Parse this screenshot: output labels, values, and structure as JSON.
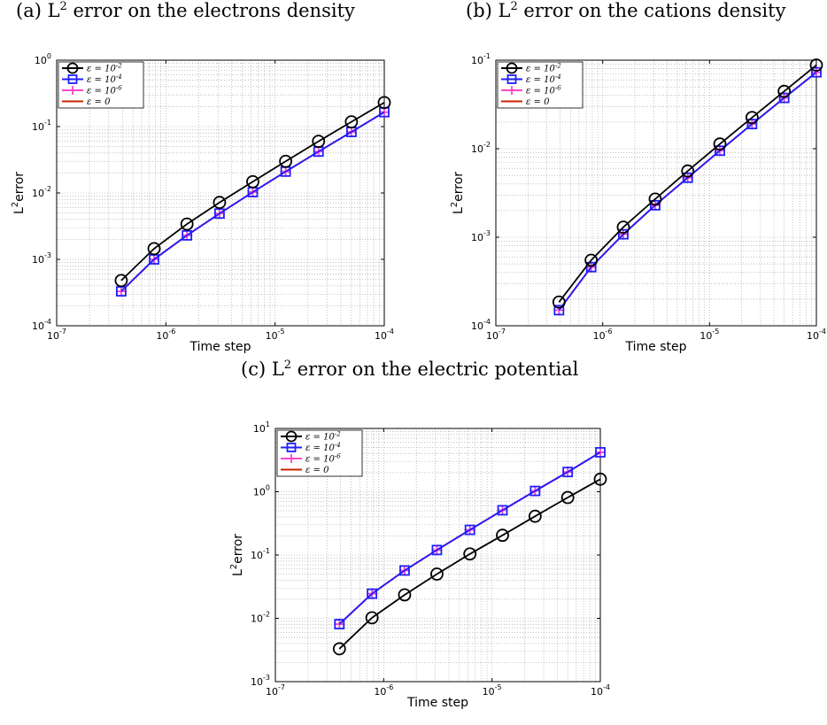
{
  "panels": [
    {
      "caption": {
        "prefix": "(a) L",
        "sup": "2",
        "rest": " error on the electrons density"
      },
      "chart_data": {
        "type": "line",
        "xscale": "log",
        "yscale": "log",
        "xlim": [
          1e-07,
          0.0001
        ],
        "ylim": [
          0.0001,
          1
        ],
        "xlabel": "Time step",
        "ylabel": "L^2 error",
        "x_ticks": [
          "10^-7",
          "10^-6",
          "10^-5",
          "10^-4"
        ],
        "y_ticks": [
          "10^-4",
          "10^-3",
          "10^-2",
          "10^-1",
          "10^0"
        ],
        "grid": true,
        "legend_position": "top-left",
        "x": [
          3.9e-07,
          7.8e-07,
          1.56e-06,
          3.1e-06,
          6.25e-06,
          1.25e-05,
          2.5e-05,
          5e-05,
          0.0001
        ],
        "series": [
          {
            "name": "ε = 10^-2",
            "color": "#000000",
            "marker": "circle",
            "values": [
              0.00048,
              0.00145,
              0.0034,
              0.0072,
              0.0148,
              0.03,
              0.06,
              0.118,
              0.23
            ]
          },
          {
            "name": "ε = 10^-4",
            "color": "#1f1fff",
            "marker": "square",
            "values": [
              0.00033,
              0.001,
              0.0023,
              0.0049,
              0.0103,
              0.021,
              0.042,
              0.083,
              0.165
            ]
          },
          {
            "name": "ε = 10^-6",
            "color": "#ff44cc",
            "marker": "plus",
            "values": [
              0.00033,
              0.001,
              0.0023,
              0.0049,
              0.0103,
              0.021,
              0.042,
              0.083,
              0.165
            ]
          },
          {
            "name": "ε = 0",
            "color": "#cc2200",
            "marker": "none",
            "values": [
              0.00033,
              0.001,
              0.0023,
              0.0049,
              0.0103,
              0.021,
              0.042,
              0.083,
              0.165
            ]
          }
        ]
      }
    },
    {
      "caption": {
        "prefix": "(b) L",
        "sup": "2",
        "rest": " error on the cations density"
      },
      "chart_data": {
        "type": "line",
        "xscale": "log",
        "yscale": "log",
        "xlim": [
          1e-07,
          0.0001
        ],
        "ylim": [
          0.0001,
          0.1
        ],
        "xlabel": "Time step",
        "ylabel": "L^2 error",
        "x_ticks": [
          "10^-7",
          "10^-6",
          "10^-5",
          "10^-4"
        ],
        "y_ticks": [
          "10^-4",
          "10^-3",
          "10^-2",
          "10^-1"
        ],
        "grid": true,
        "legend_position": "top-left",
        "x": [
          3.9e-07,
          7.8e-07,
          1.56e-06,
          3.1e-06,
          6.25e-06,
          1.25e-05,
          2.5e-05,
          5e-05,
          0.0001
        ],
        "series": [
          {
            "name": "ε = 10^-2",
            "color": "#000000",
            "marker": "circle",
            "values": [
              0.000185,
              0.00055,
              0.0013,
              0.0027,
              0.0056,
              0.0113,
              0.0225,
              0.0445,
              0.088
            ]
          },
          {
            "name": "ε = 10^-4",
            "color": "#1f1fff",
            "marker": "square",
            "values": [
              0.00015,
              0.00046,
              0.00108,
              0.0023,
              0.0047,
              0.0095,
              0.019,
              0.0375,
              0.073
            ]
          },
          {
            "name": "ε = 10^-6",
            "color": "#ff44cc",
            "marker": "plus",
            "values": [
              0.00015,
              0.00046,
              0.00108,
              0.0023,
              0.0047,
              0.0095,
              0.019,
              0.0375,
              0.073
            ]
          },
          {
            "name": "ε = 0",
            "color": "#cc2200",
            "marker": "none",
            "values": [
              0.00015,
              0.00046,
              0.00108,
              0.0023,
              0.0047,
              0.0095,
              0.019,
              0.0375,
              0.073
            ]
          }
        ]
      }
    },
    {
      "caption": {
        "prefix": "(c) L",
        "sup": "2",
        "rest": " error on the electric potential"
      },
      "chart_data": {
        "type": "line",
        "xscale": "log",
        "yscale": "log",
        "xlim": [
          1e-07,
          0.0001
        ],
        "ylim": [
          0.001,
          10
        ],
        "xlabel": "Time step",
        "ylabel": "L^2 error",
        "x_ticks": [
          "10^-7",
          "10^-6",
          "10^-5",
          "10^-4"
        ],
        "y_ticks": [
          "10^-3",
          "10^-2",
          "10^-1",
          "10^0",
          "10^1"
        ],
        "grid": true,
        "legend_position": "top-left",
        "x": [
          3.9e-07,
          7.8e-07,
          1.56e-06,
          3.1e-06,
          6.25e-06,
          1.25e-05,
          2.5e-05,
          5e-05,
          0.0001
        ],
        "series": [
          {
            "name": "ε = 10^-2",
            "color": "#000000",
            "marker": "circle",
            "values": [
              0.0033,
              0.0102,
              0.0235,
              0.05,
              0.104,
              0.205,
              0.41,
              0.81,
              1.58
            ]
          },
          {
            "name": "ε = 10^-4",
            "color": "#1f1fff",
            "marker": "square",
            "values": [
              0.0081,
              0.0245,
              0.057,
              0.12,
              0.25,
              0.51,
              1.03,
              2.05,
              4.2
            ]
          },
          {
            "name": "ε = 10^-6",
            "color": "#ff44cc",
            "marker": "plus",
            "values": [
              0.0081,
              0.0245,
              0.057,
              0.12,
              0.25,
              0.51,
              1.03,
              2.05,
              4.2
            ]
          },
          {
            "name": "ε = 0",
            "color": "#cc2200",
            "marker": "none",
            "values": [
              0.0081,
              0.0245,
              0.057,
              0.12,
              0.25,
              0.51,
              1.03,
              2.05,
              4.2
            ]
          }
        ]
      }
    }
  ]
}
